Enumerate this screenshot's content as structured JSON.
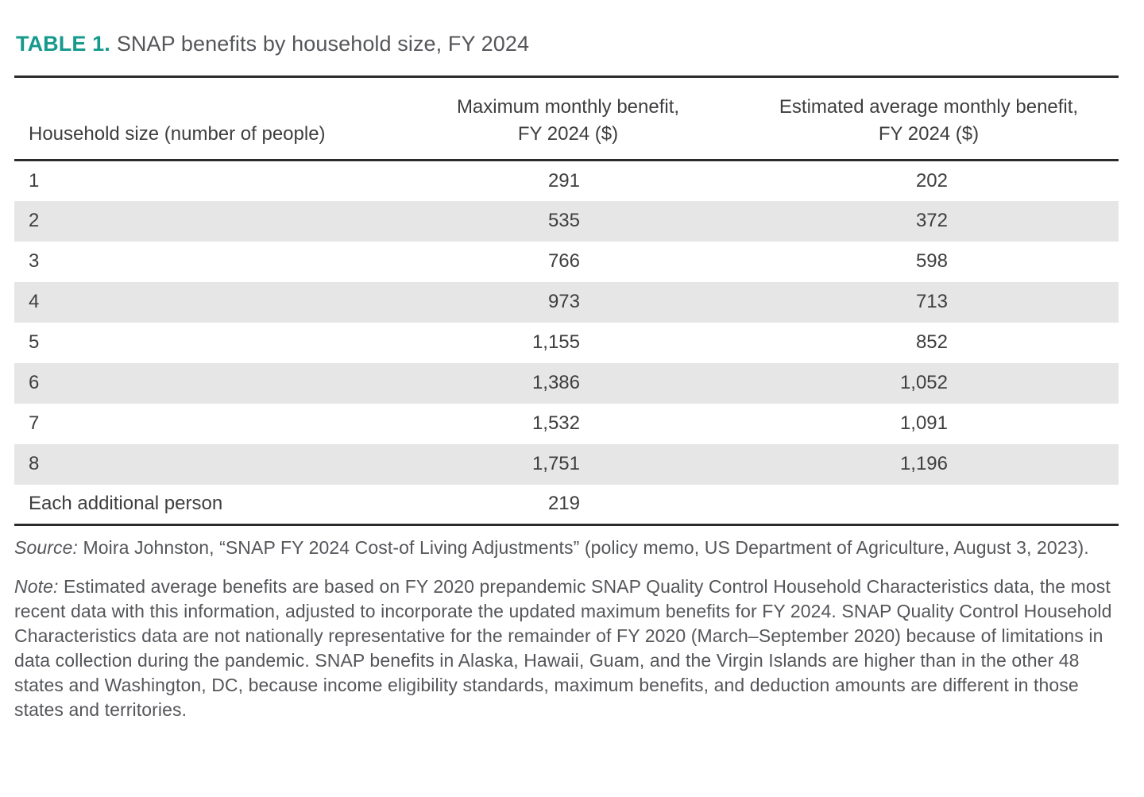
{
  "title": {
    "label": "TABLE 1.",
    "text": "SNAP benefits by household size, FY 2024"
  },
  "table": {
    "columns": [
      {
        "label": "Household size (number of people)"
      },
      {
        "line1": "Maximum monthly benefit,",
        "line2": "FY 2024 ($)"
      },
      {
        "line1": "Estimated average monthly benefit,",
        "line2": "FY 2024 ($)"
      }
    ],
    "rows": [
      [
        "1",
        "291",
        "202"
      ],
      [
        "2",
        "535",
        "372"
      ],
      [
        "3",
        "766",
        "598"
      ],
      [
        "4",
        "973",
        "713"
      ],
      [
        "5",
        "1,155",
        "852"
      ],
      [
        "6",
        "1,386",
        "1,052"
      ],
      [
        "7",
        "1,532",
        "1,091"
      ],
      [
        "8",
        "1,751",
        "1,196"
      ],
      [
        "Each additional person",
        "219",
        ""
      ]
    ]
  },
  "source": {
    "label": "Source:",
    "text": "Moira Johnston, “SNAP FY 2024 Cost-of Living Adjustments” (policy memo, US Department of Agriculture, August 3, 2023)."
  },
  "note": {
    "label": "Note:",
    "text": "Estimated average benefits are based on FY 2020 prepandemic SNAP Quality Control Household Characteristics data, the most recent data with this information, adjusted to incorporate the updated maximum benefits for FY 2024. SNAP Quality Control Household Characteristics data are not nationally representative for the remainder of FY 2020 (March–September 2020) because of limitations in data collection during the pandemic. SNAP benefits in Alaska, Hawaii, Guam, and the Virgin Islands are higher than in the other 48 states and Washington, DC, because income eligibility standards, maximum benefits, and deduction amounts are different in those states and territories."
  },
  "colors": {
    "accent_teal": "#179A8D",
    "row_stripe": "#E6E6E6",
    "border_dark": "#2B2B2B",
    "text_gray": "#55565A"
  }
}
